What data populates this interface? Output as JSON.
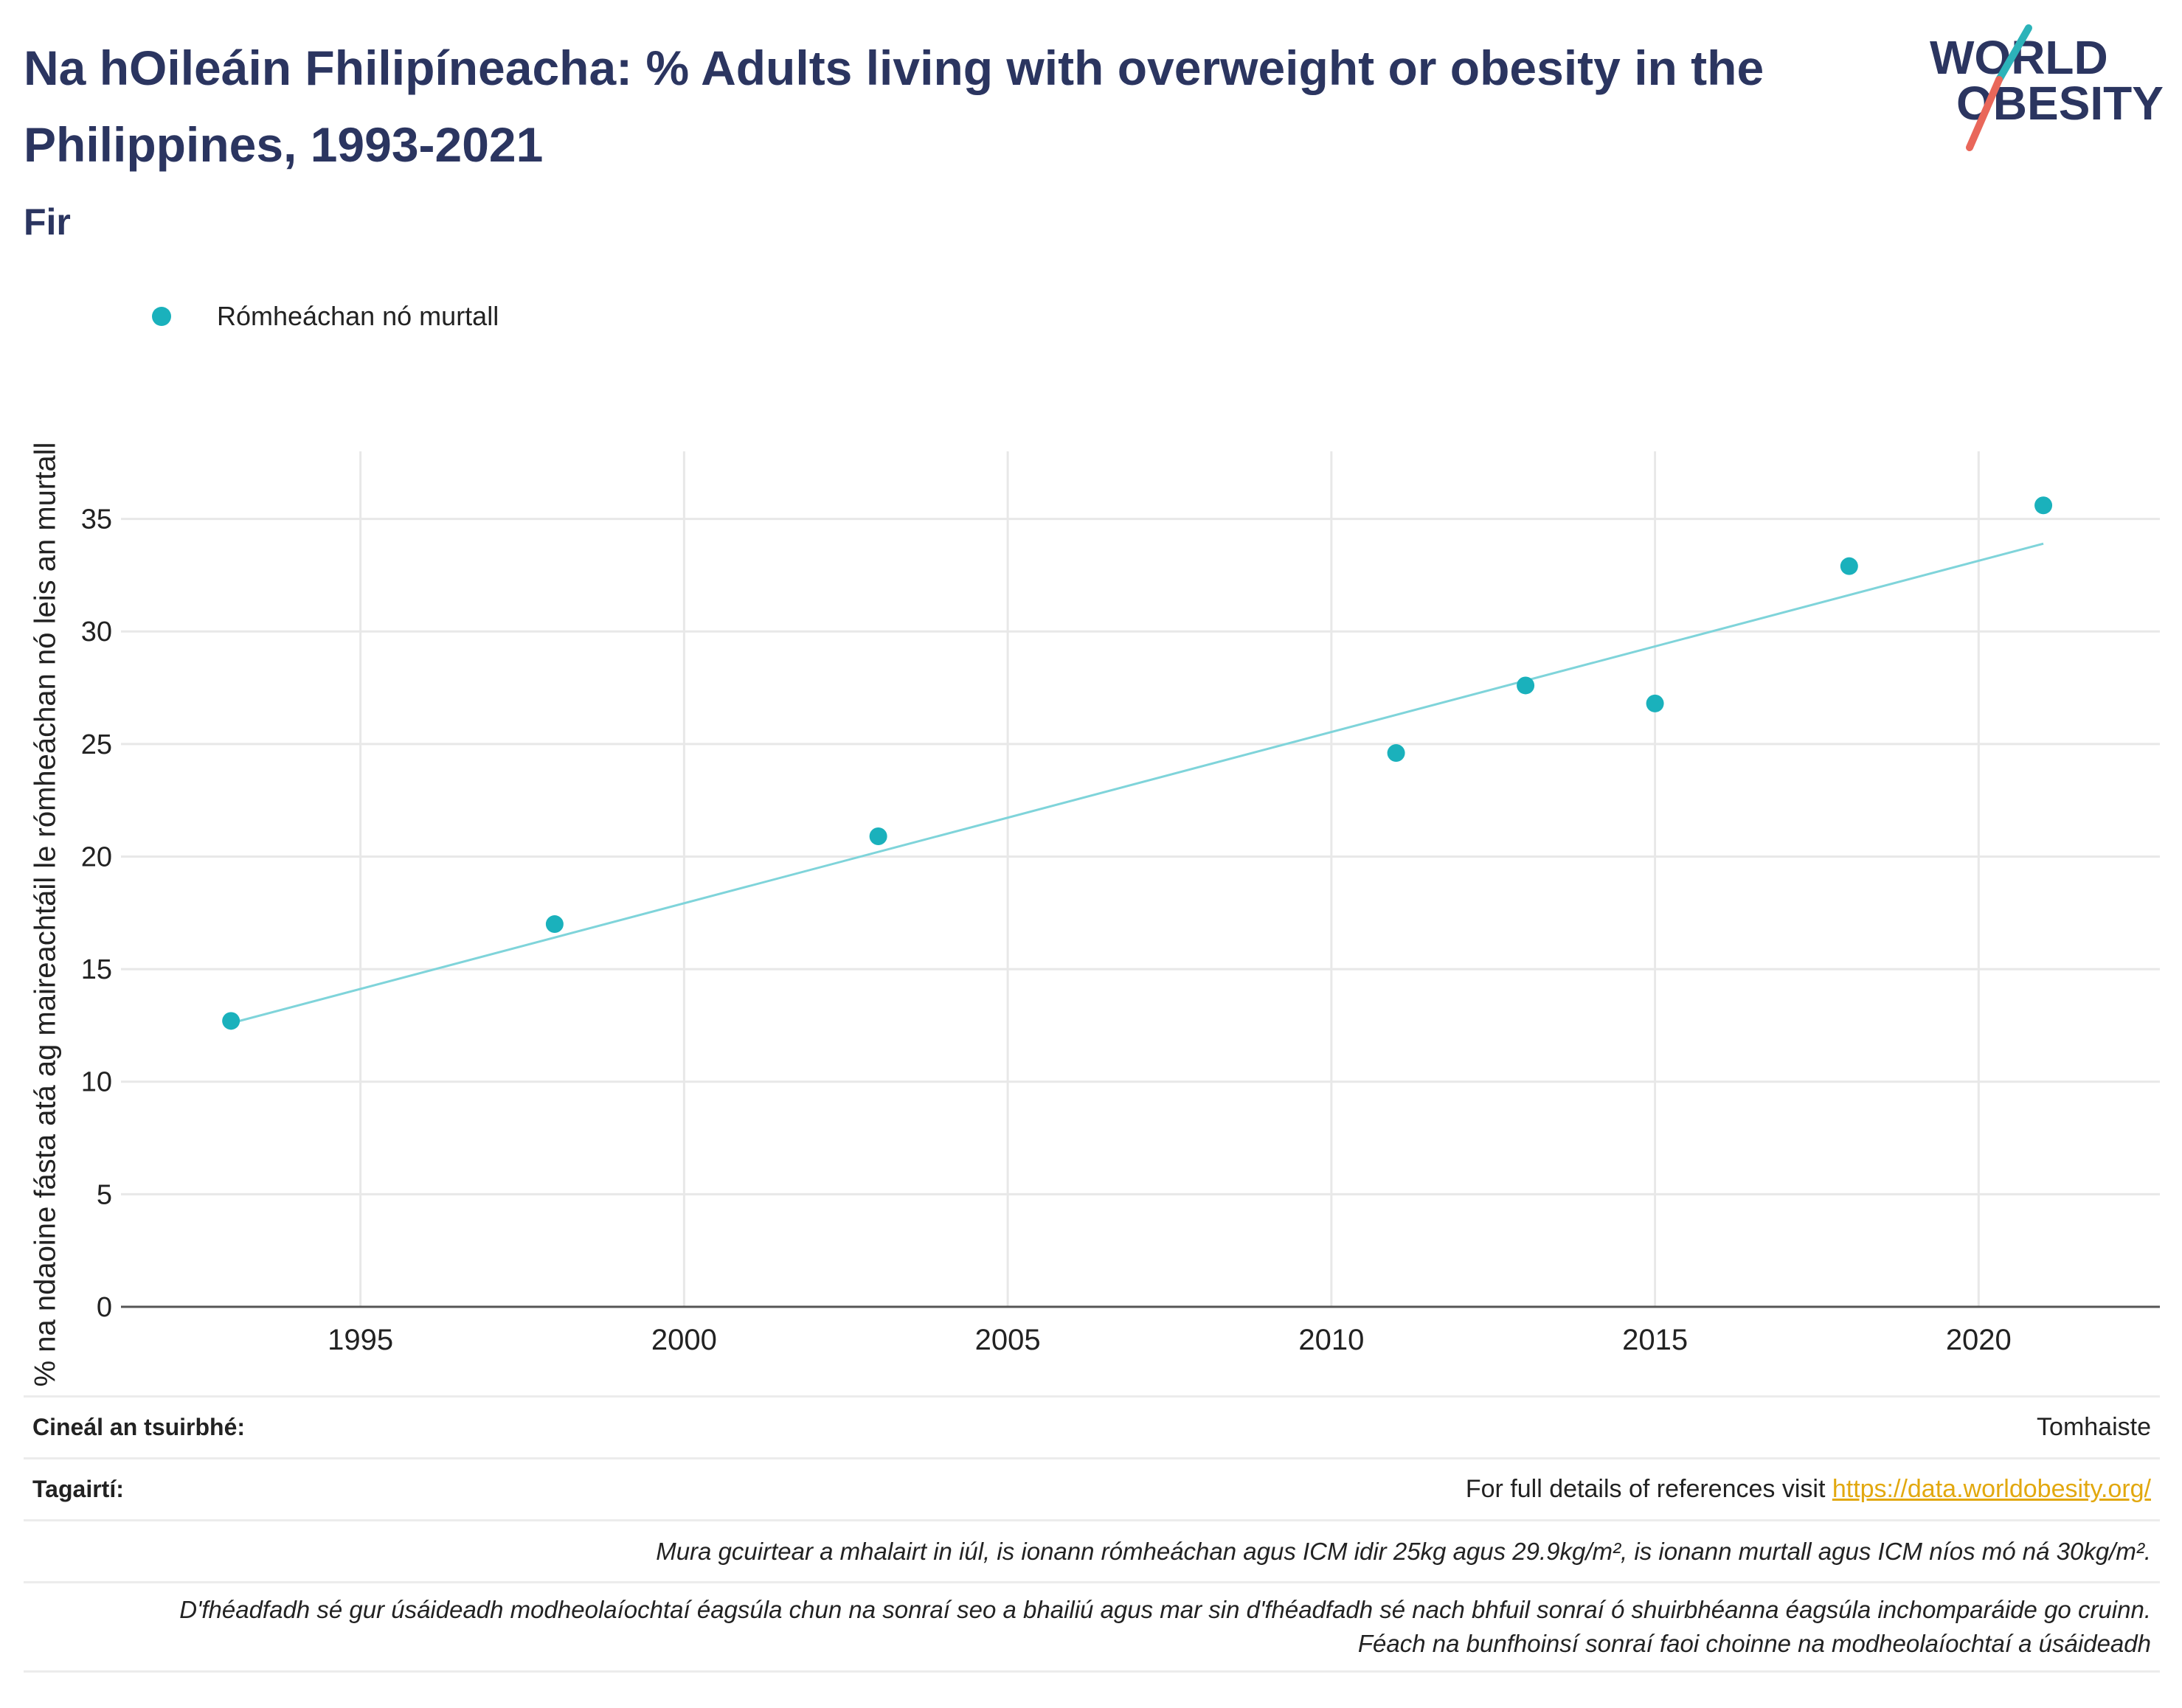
{
  "header": {
    "title": "Na hOileáin Fhilipíneacha: % Adults living with overweight or obesity in the Philippines, 1993-2021",
    "subtitle": "Fir"
  },
  "logo": {
    "line1": "WORLD",
    "line2": "OBESITY"
  },
  "colors": {
    "title": "#2b3560",
    "series": "#1ab1bc",
    "trend": "#7fd4da",
    "link": "#e2a80f",
    "logo_teal": "#2cb3b9",
    "logo_coral": "#e9675a"
  },
  "chart_data": {
    "type": "scatter",
    "title": "Na hOileáin Fhilipíneacha: % Adults living with overweight or obesity in the Philippines, 1993-2021",
    "subtitle": "Fir",
    "xlabel": "",
    "ylabel": "% na ndaoine fásta atá ag maireachtáil le rómheáchan nó leis an murtall",
    "xlim": [
      1991.3,
      2022.8
    ],
    "ylim": [
      0,
      38
    ],
    "xticks": [
      1995,
      2000,
      2005,
      2010,
      2015,
      2020
    ],
    "yticks": [
      0,
      5,
      10,
      15,
      20,
      25,
      30,
      35
    ],
    "grid": true,
    "legend_position": "top-left",
    "series": [
      {
        "name": "Rómheáchan nó murtall",
        "x": [
          1993,
          1998,
          2003,
          2011,
          2013,
          2015,
          2018,
          2021
        ],
        "y": [
          12.7,
          17.0,
          20.9,
          24.6,
          27.6,
          26.8,
          32.9,
          35.6
        ]
      }
    ],
    "trendline": {
      "x": [
        1993,
        2021
      ],
      "y": [
        12.6,
        33.9
      ]
    }
  },
  "footer": {
    "survey_label": "Cineál an tsuirbhé:",
    "survey_value": "Tomhaiste",
    "refs_label": "Tagairtí:",
    "refs_text": "For full details of references visit ",
    "refs_link": "https://data.worldobesity.org/",
    "note1": "Mura gcuirtear a mhalairt in iúl, is ionann rómheáchan agus ICM idir 25kg agus 29.9kg/m², is ionann murtall agus ICM níos mó ná 30kg/m².",
    "note2_line1": "D'fhéadfadh sé gur úsáideadh modheolaíochtaí éagsúla chun na sonraí seo a bhailiú agus mar sin d'fhéadfadh sé nach bhfuil sonraí ó shuirbhéanna éagsúla inchomparáide go cruinn.",
    "note2_line2": "Féach na bunfhoinsí sonraí faoi choinne na modheolaíochtaí a úsáideadh"
  }
}
